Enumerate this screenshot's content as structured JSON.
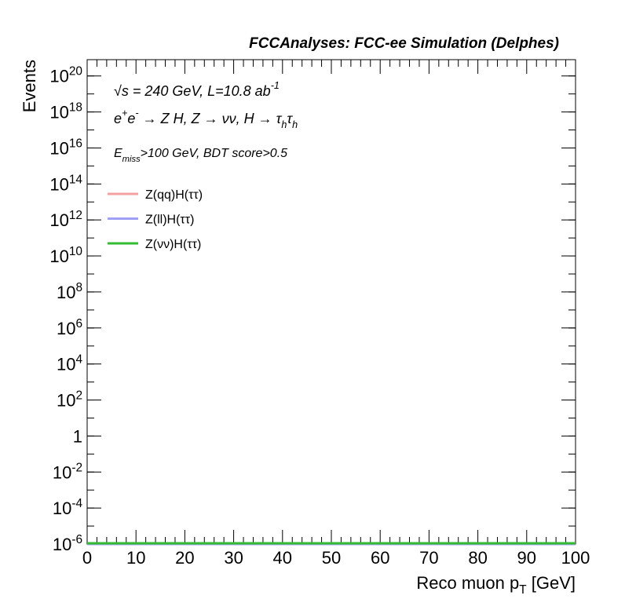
{
  "chart_data": {
    "type": "histogram",
    "title": "FCCAnalyses: FCC-ee Simulation (Delphes)",
    "annotations": [
      "√s = 240 GeV, L=10.8 ab^{-1}",
      "e^{+}e^{-} → Z H, Z → νν, H → τ_{h}τ_{h}",
      "E_{miss}>100 GeV, BDT score>0.5"
    ],
    "xlabel": "Reco muon p_{T} [GeV]",
    "ylabel": "Events",
    "log_y": true,
    "bins": [
      0,
      100
    ],
    "series": [
      {
        "name": "Z(qq)H(ττ)",
        "color": "#f5a0a0",
        "values": [
          1e-06
        ]
      },
      {
        "name": "Z(ll)H(ττ)",
        "color": "#a0a0f5",
        "values": [
          1e-06
        ]
      },
      {
        "name": "Z(νν)H(ττ)",
        "color": "#33bb33",
        "values": [
          1e-06
        ]
      }
    ],
    "xlim": [
      0,
      100
    ],
    "xticks": [
      0,
      10,
      20,
      30,
      40,
      50,
      60,
      70,
      80,
      90,
      100
    ],
    "ylim": [
      1e-06,
      8e+20
    ],
    "yticks": [
      {
        "value": 1e-06,
        "label": "10^{-6}"
      },
      {
        "value": 0.0001,
        "label": "10^{-4}"
      },
      {
        "value": 0.01,
        "label": "10^{-2}"
      },
      1,
      {
        "value": 100.0,
        "label": "10^{2}"
      },
      {
        "value": 10000.0,
        "label": "10^{4}"
      },
      {
        "value": 1000000.0,
        "label": "10^{6}"
      },
      {
        "value": 100000000.0,
        "label": "10^{8}"
      },
      {
        "value": 10000000000.0,
        "label": "10^{10}"
      },
      {
        "value": 1000000000000.0,
        "label": "10^{12}"
      },
      {
        "value": 100000000000000.0,
        "label": "10^{14}"
      },
      {
        "value": 1e+16,
        "label": "10^{16}"
      },
      {
        "value": 1e+18,
        "label": "10^{18}"
      },
      {
        "value": 1e+20,
        "label": "10^{20}"
      }
    ],
    "legend": "upper left"
  }
}
